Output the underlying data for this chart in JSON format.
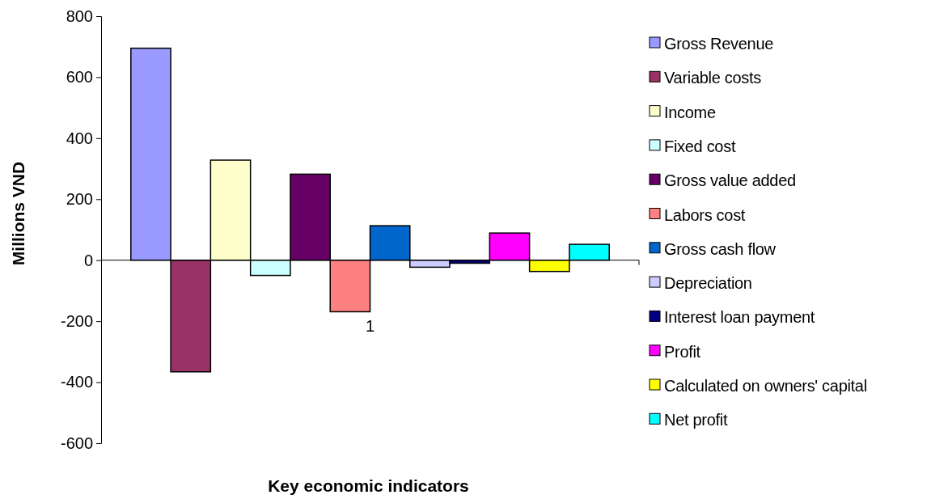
{
  "chart_data": {
    "type": "bar",
    "xlabel": "Key economic indicators",
    "ylabel": "Millions VND",
    "categories": [
      "1"
    ],
    "ylim": [
      -600,
      800
    ],
    "yticks": [
      -600,
      -400,
      -200,
      0,
      200,
      400,
      600,
      800
    ],
    "legend": "right",
    "series": [
      {
        "name": "Gross Revenue",
        "color": "#9999ff",
        "values": [
          695
        ]
      },
      {
        "name": "Variable costs",
        "color": "#993366",
        "values": [
          -366
        ]
      },
      {
        "name": "Income",
        "color": "#ffffcc",
        "values": [
          328
        ]
      },
      {
        "name": "Fixed cost",
        "color": "#ccffff",
        "values": [
          -50
        ]
      },
      {
        "name": "Gross value added",
        "color": "#660066",
        "values": [
          282
        ]
      },
      {
        "name": "Labors cost",
        "color": "#ff8080",
        "values": [
          -169
        ]
      },
      {
        "name": "Gross cash flow",
        "color": "#0066cc",
        "values": [
          113
        ]
      },
      {
        "name": "Depreciation",
        "color": "#ccccff",
        "values": [
          -23
        ]
      },
      {
        "name": "Interest loan payment",
        "color": "#000080",
        "values": [
          -10
        ]
      },
      {
        "name": "Profit",
        "color": "#ff00ff",
        "values": [
          89
        ]
      },
      {
        "name": "Calculated on owners' capital",
        "color": "#ffff00",
        "values": [
          -37
        ]
      },
      {
        "name": "Net profit",
        "color": "#00ffff",
        "values": [
          52
        ]
      }
    ]
  }
}
